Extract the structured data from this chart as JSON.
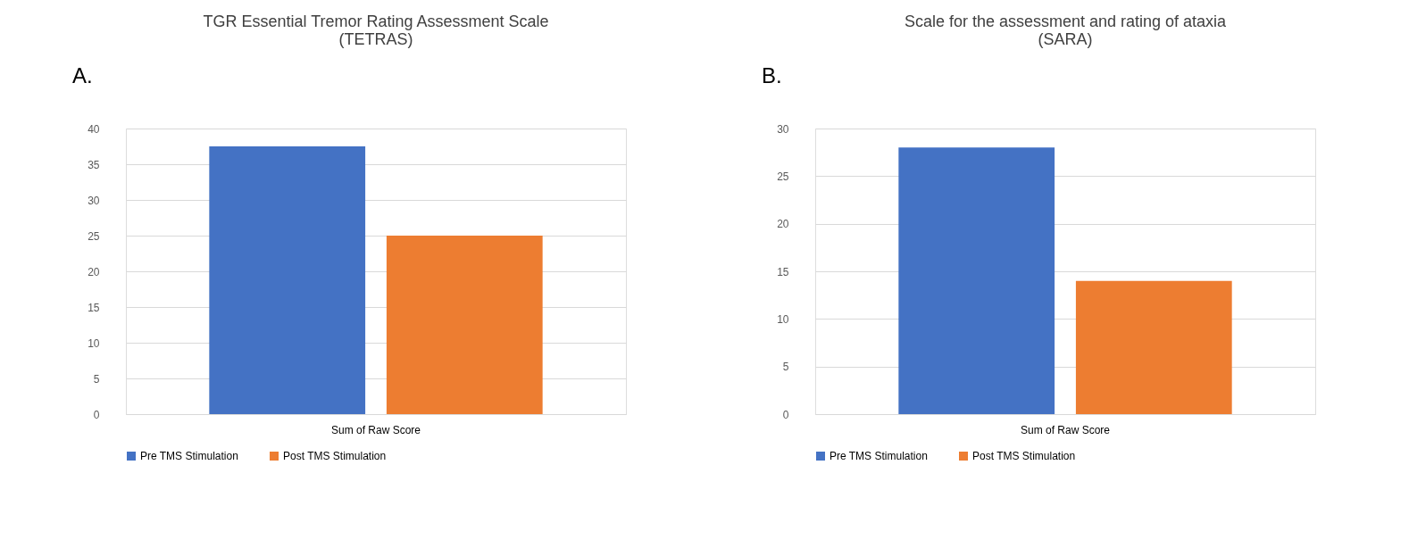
{
  "chart_data": [
    {
      "type": "bar",
      "title": "TGR Essential Tremor Rating Assessment Scale (TETRAS)",
      "annotations": [
        "A."
      ],
      "categories": [
        "Sum of Raw Score"
      ],
      "series": [
        {
          "name": "Pre TMS  Stimulation",
          "color": "#4472c4",
          "values": [
            37.5
          ]
        },
        {
          "name": "Post TMS Stimulation",
          "color": "#ed7d31",
          "values": [
            25
          ]
        }
      ],
      "ylim": [
        0,
        40
      ],
      "yticks": [
        0,
        5,
        10,
        15,
        20,
        25,
        30,
        35,
        40
      ],
      "grid": "y",
      "legend": "bottom"
    },
    {
      "type": "bar",
      "title": "Scale for the assessment and rating of ataxia (SARA)",
      "annotations": [
        "B."
      ],
      "categories": [
        "Sum of Raw Score"
      ],
      "series": [
        {
          "name": "Pre TMS  Stimulation",
          "color": "#4472c4",
          "values": [
            28
          ]
        },
        {
          "name": "Post TMS Stimulation",
          "color": "#ed7d31",
          "values": [
            14
          ]
        }
      ],
      "ylim": [
        0,
        30
      ],
      "yticks": [
        0,
        5,
        10,
        15,
        20,
        25,
        30
      ],
      "grid": "y",
      "legend": "bottom"
    }
  ]
}
